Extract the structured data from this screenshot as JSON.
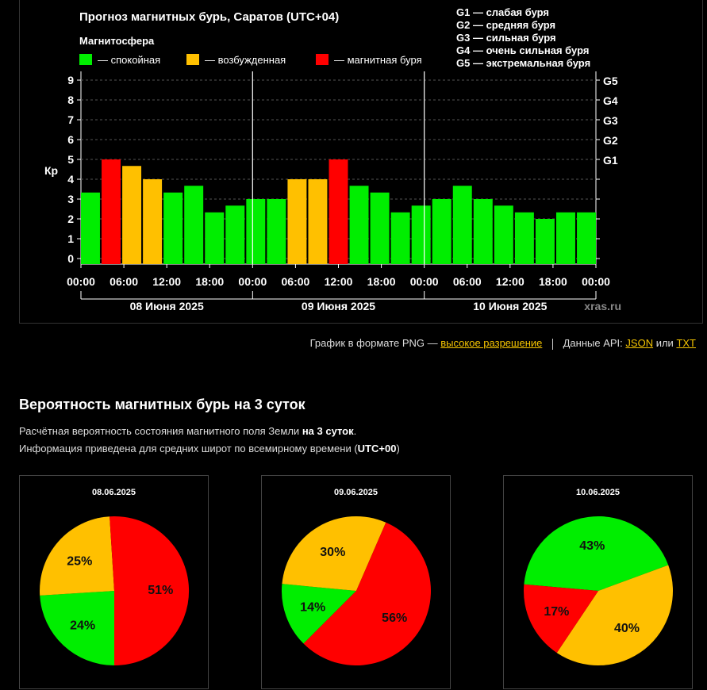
{
  "chart": {
    "title": "Прогноз магнитных бурь, Саратов (UTC+04)",
    "legend_title": "Магнитосфера",
    "legend": [
      {
        "label": "— спокойная",
        "color": "#00ee00"
      },
      {
        "label": "— возбужденная",
        "color": "#ffc000"
      },
      {
        "label": "— магнитная буря",
        "color": "#ff0000"
      }
    ],
    "g_scale": [
      "G1 — слабая буря",
      "G2 — средняя буря",
      "G3 — сильная буря",
      "G4 — очень сильная буря",
      "G5 — экстремальная буря"
    ],
    "watermark": "xras.ru"
  },
  "chart_data": [
    {
      "type": "bar",
      "title": "Прогноз магнитных бурь, Саратов (UTC+04)",
      "ylabel": "Кр",
      "ylim": [
        0,
        9
      ],
      "yticks": [
        0,
        1,
        2,
        3,
        4,
        5,
        6,
        7,
        8,
        9
      ],
      "right_ticks": [
        {
          "value": 5,
          "label": "G1"
        },
        {
          "value": 6,
          "label": "G2"
        },
        {
          "value": 7,
          "label": "G3"
        },
        {
          "value": 8,
          "label": "G4"
        },
        {
          "value": 9,
          "label": "G5"
        }
      ],
      "x_tick_labels": [
        "00:00",
        "06:00",
        "12:00",
        "18:00",
        "00:00",
        "06:00",
        "12:00",
        "18:00",
        "00:00",
        "06:00",
        "12:00",
        "18:00",
        "00:00"
      ],
      "day_labels": [
        "08 Июня 2025",
        "09 Июня 2025",
        "10 Июня 2025"
      ],
      "grid": true,
      "values": [
        3.33,
        5,
        4.67,
        4,
        3.33,
        3.67,
        2.33,
        2.67,
        3,
        3,
        4,
        4,
        5,
        3.67,
        3.33,
        2.33,
        2.67,
        3,
        3.67,
        3,
        2.67,
        2.33,
        2,
        2.33,
        2.33
      ],
      "colors": {
        "calm": "#00ee00",
        "excited": "#ffc000",
        "storm": "#ff0000"
      }
    },
    {
      "type": "pie",
      "title": "08.06.2025",
      "categories": [
        "спокойная",
        "возбужденная",
        "магнитная буря"
      ],
      "values": [
        24,
        25,
        51
      ],
      "labels": [
        "24%",
        "25%",
        "51%"
      ],
      "colors": [
        "#00ee00",
        "#ffc000",
        "#ff0000"
      ]
    },
    {
      "type": "pie",
      "title": "09.06.2025",
      "categories": [
        "спокойная",
        "возбужденная",
        "магнитная буря"
      ],
      "values": [
        14,
        30,
        56
      ],
      "labels": [
        "14%",
        "30%",
        "56%"
      ],
      "colors": [
        "#00ee00",
        "#ffc000",
        "#ff0000"
      ]
    },
    {
      "type": "pie",
      "title": "10.06.2025",
      "categories": [
        "спокойная",
        "возбужденная",
        "магнитная буря"
      ],
      "values": [
        43,
        40,
        17
      ],
      "labels": [
        "43%",
        "40%",
        "17%"
      ],
      "colors": [
        "#00ee00",
        "#ffc000",
        "#ff0000"
      ]
    }
  ],
  "links": {
    "png_prefix": "График в формате PNG —",
    "png_link": "высокое разрешение",
    "api_prefix": "Данные API:",
    "json": "JSON",
    "or": "или",
    "txt": "TXT"
  },
  "probability": {
    "title": "Вероятность магнитных бурь на 3 суток",
    "line1_prefix": "Расчётная вероятность состояния магнитного поля Земли",
    "line1_bold": "на 3 суток",
    "line1_suffix": ".",
    "line2_prefix": "Информация приведена для средних широт по всемирному времени (",
    "line2_bold": "UTC+00",
    "line2_suffix": ")"
  }
}
